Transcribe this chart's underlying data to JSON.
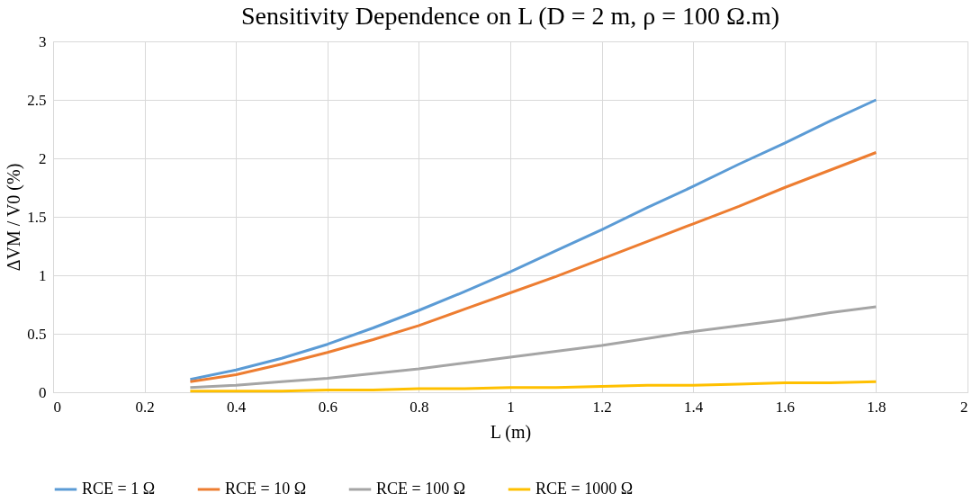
{
  "chart_data": {
    "type": "line",
    "title": "Sensitivity Dependence on L (D = 2  m, ρ = 100 Ω.m)",
    "xlabel": "L (m)",
    "ylabel": "ΔVM / V0  (%)",
    "x": [
      0.3,
      0.4,
      0.5,
      0.6,
      0.7,
      0.8,
      0.9,
      1.0,
      1.1,
      1.2,
      1.3,
      1.4,
      1.5,
      1.6,
      1.7,
      1.8
    ],
    "series": [
      {
        "name": "RCE = 1 Ω",
        "color": "#5b9bd5",
        "values": [
          0.11,
          0.19,
          0.29,
          0.41,
          0.55,
          0.7,
          0.86,
          1.03,
          1.21,
          1.39,
          1.58,
          1.76,
          1.95,
          2.13,
          2.32,
          2.5
        ]
      },
      {
        "name": "RCE = 10 Ω",
        "color": "#ed7d31",
        "values": [
          0.09,
          0.15,
          0.24,
          0.34,
          0.45,
          0.57,
          0.71,
          0.85,
          0.99,
          1.14,
          1.29,
          1.44,
          1.59,
          1.75,
          1.9,
          2.05
        ]
      },
      {
        "name": "RCE = 100 Ω",
        "color": "#a5a5a5",
        "values": [
          0.04,
          0.06,
          0.09,
          0.12,
          0.16,
          0.2,
          0.25,
          0.3,
          0.35,
          0.4,
          0.46,
          0.52,
          0.57,
          0.62,
          0.68,
          0.73
        ]
      },
      {
        "name": "RCE = 1000 Ω",
        "color": "#ffc000",
        "values": [
          0.01,
          0.01,
          0.01,
          0.02,
          0.02,
          0.03,
          0.03,
          0.04,
          0.04,
          0.05,
          0.06,
          0.06,
          0.07,
          0.08,
          0.08,
          0.09
        ]
      }
    ],
    "xlim": [
      0,
      2
    ],
    "xticks": [
      0,
      0.2,
      0.4,
      0.6,
      0.8,
      1,
      1.2,
      1.4,
      1.6,
      1.8,
      2
    ],
    "ylim": [
      0,
      3
    ],
    "yticks": [
      0,
      0.5,
      1,
      1.5,
      2,
      2.5,
      3
    ],
    "grid": true,
    "legend": "bottom",
    "marker": "none",
    "line_style": "solid"
  }
}
